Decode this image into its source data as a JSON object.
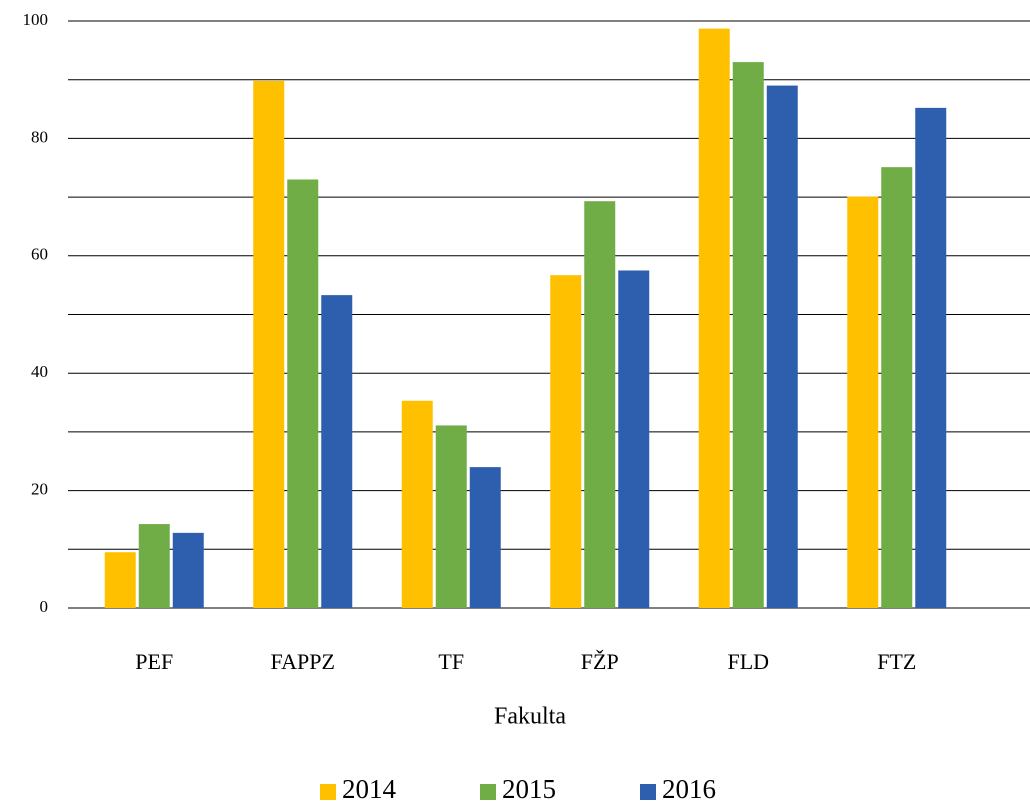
{
  "chart_data": {
    "type": "bar",
    "x_label": "Fakulta",
    "categories": [
      "PEF",
      "FAPPZ",
      "TF",
      "FŽP",
      "FLD",
      "FTZ"
    ],
    "series": [
      {
        "name": "2014",
        "color": "#ffc000",
        "values": [
          9.5,
          89.8,
          35.3,
          56.7,
          98.7,
          70.1
        ]
      },
      {
        "name": "2015",
        "color": "#70ad47",
        "values": [
          14.3,
          73,
          31.1,
          69.3,
          93,
          75.1
        ]
      },
      {
        "name": "2016",
        "color": "#2e5fae",
        "values": [
          12.8,
          53.3,
          24,
          57.5,
          89,
          85.2
        ]
      }
    ],
    "ylim": [
      0,
      100
    ],
    "yticks": [
      0,
      20,
      40,
      60,
      80,
      100
    ],
    "minor_yticks": [
      10,
      30,
      50,
      70,
      90
    ],
    "grid": true,
    "legend": "bottom"
  }
}
